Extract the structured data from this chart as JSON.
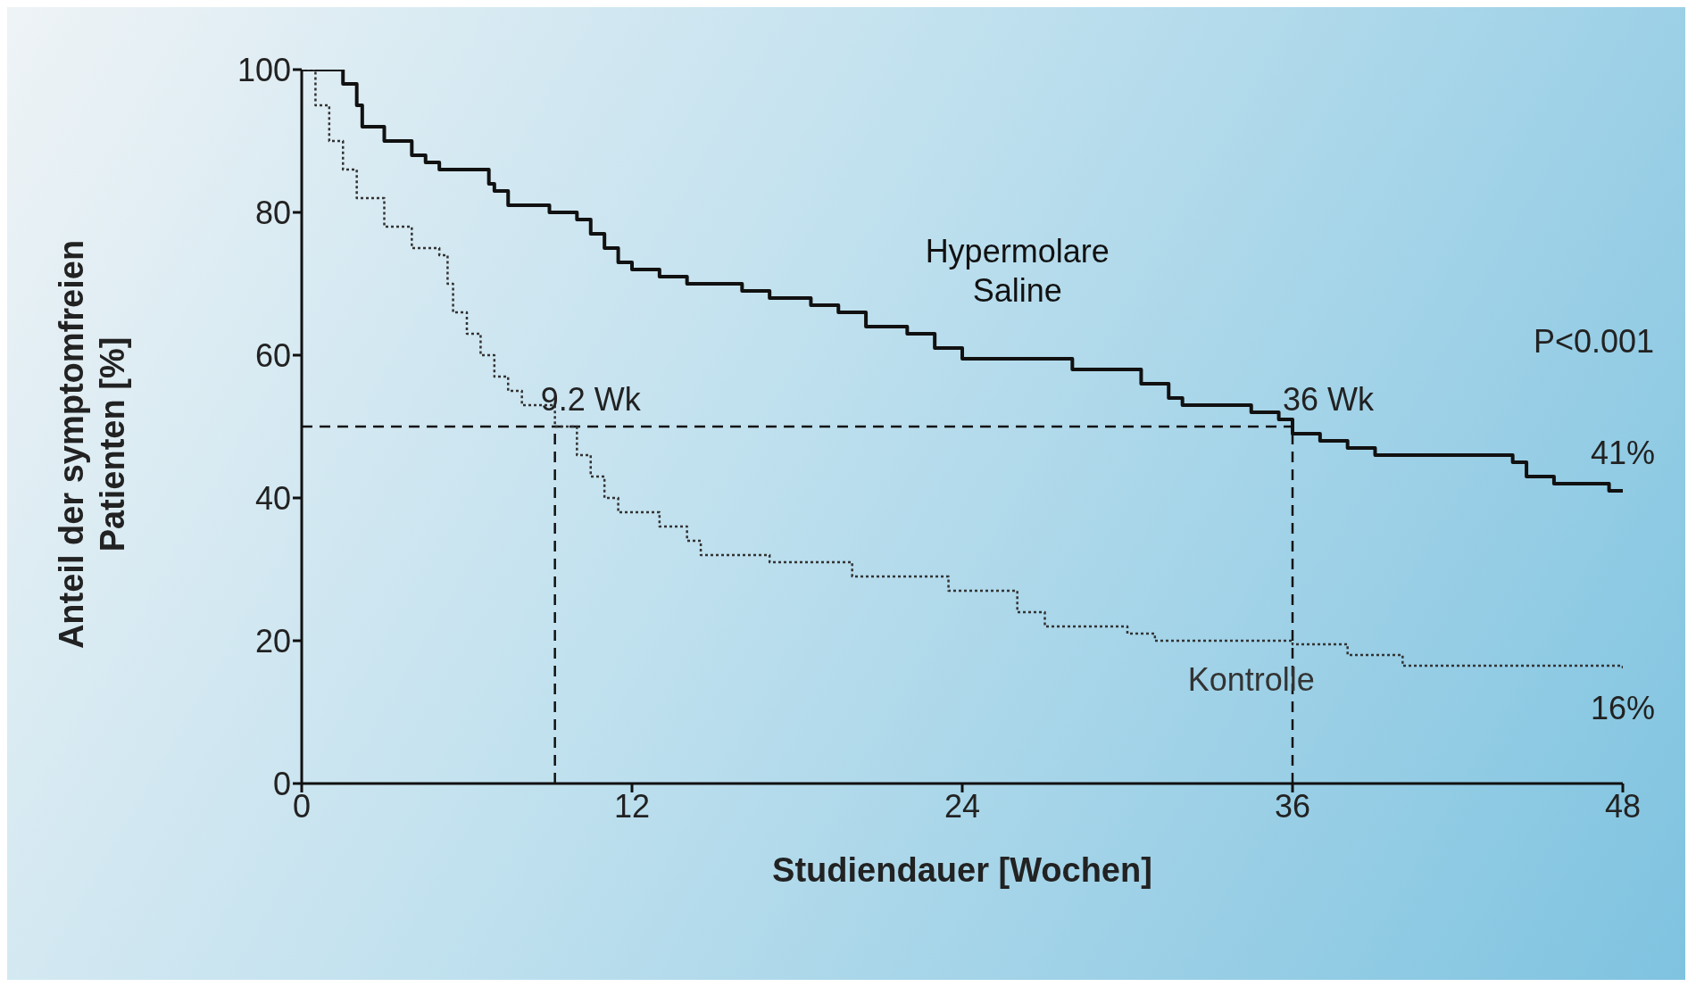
{
  "chart_data": {
    "type": "step",
    "xlabel": "Studiendauer [Wochen]",
    "ylabel": "Anteil der symptomfreien Patienten [%]",
    "xlim": [
      0,
      48
    ],
    "xticks": [
      0,
      12,
      24,
      36,
      48
    ],
    "ylim": [
      0,
      100
    ],
    "yticks": [
      0,
      20,
      40,
      60,
      80,
      100
    ],
    "grid": false,
    "legend": false,
    "marker": "none",
    "series": [
      {
        "name": "Hypermolare Saline",
        "color": "#111111",
        "line_style": "solid",
        "x": [
          0,
          1.2,
          1.5,
          2,
          2.2,
          3,
          4,
          4.5,
          5,
          6.8,
          7,
          7.5,
          9,
          10,
          10.5,
          11,
          11.5,
          12,
          13,
          14,
          16,
          17,
          18.5,
          19.5,
          20.5,
          22,
          23,
          24,
          28,
          30.5,
          31.5,
          32,
          34.5,
          35.5,
          36,
          37,
          38,
          39,
          44,
          44.5,
          45.5,
          47.5,
          48
        ],
        "values": [
          100,
          100,
          98,
          95,
          92,
          90,
          88,
          87,
          86,
          84,
          83,
          81,
          80,
          79,
          77,
          75,
          73,
          72,
          71,
          70,
          69,
          68,
          67,
          66,
          64,
          63,
          61,
          59.5,
          58,
          56,
          54,
          53,
          52,
          51,
          49,
          48,
          47,
          46,
          45,
          43,
          42,
          41,
          41
        ]
      },
      {
        "name": "Kontrolle",
        "color": "#333333",
        "line_style": "dotted",
        "x": [
          0,
          0.5,
          1,
          1.5,
          2,
          3,
          4,
          5,
          5.3,
          5.5,
          6,
          6.5,
          7,
          7.5,
          8,
          9.2,
          10,
          10.5,
          11,
          11.5,
          13,
          14,
          14.5,
          17,
          20,
          23.5,
          26,
          27,
          30,
          31,
          36,
          38,
          40,
          48
        ],
        "values": [
          100,
          95,
          90,
          86,
          82,
          78,
          75,
          74,
          70,
          66,
          63,
          60,
          57,
          55,
          53,
          50,
          46,
          43,
          40,
          38,
          36,
          34,
          32,
          31,
          29,
          27,
          24,
          22,
          21,
          20,
          19.5,
          18,
          16.5,
          16
        ]
      }
    ],
    "ref_lines": [
      {
        "axis": "y",
        "value": 50,
        "line_style": "dashed",
        "color": "#111111"
      },
      {
        "axis": "x",
        "value": 9.2,
        "label": "9.2 Wk",
        "line_style": "dashed",
        "color": "#111111"
      },
      {
        "axis": "x",
        "value": 36,
        "label": "36 Wk",
        "line_style": "dashed",
        "color": "#111111"
      }
    ],
    "annotations": [
      "P<0.001",
      {
        "text": "41%",
        "x": 48,
        "y": 41
      },
      {
        "text": "16%",
        "x": 48,
        "y": 16
      }
    ]
  }
}
